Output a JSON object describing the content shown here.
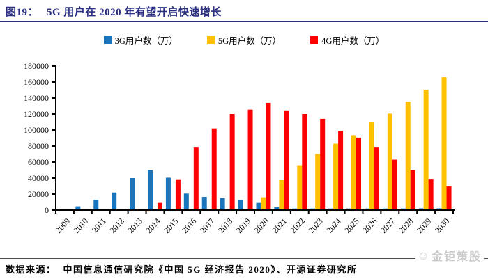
{
  "figure": {
    "label": "图19：",
    "title": "5G 用户在 2020 年有望开启快速增长"
  },
  "colors": {
    "title_navy": "#2a2f80",
    "bar_3g_blue": "#1b75bc",
    "bar_5g_yellow": "#ffc000",
    "bar_4g_red": "#fe0000",
    "axis_black": "#000000",
    "watermark_gray": "#cbcbcb"
  },
  "source": {
    "prefix": "数据来源：",
    "body": "中国信息通信研究院《中国 5G 经济报告 2020》、开源证券研究所"
  },
  "watermark": {
    "icon": "smiley-face-icon",
    "text": "金钜策股"
  },
  "chart_data": {
    "type": "bar",
    "title": "图19：5G 用户在 2020 年有望开启快速增长",
    "categories": [
      "2009",
      "2010",
      "2011",
      "2012",
      "2013",
      "2014",
      "2015",
      "2016",
      "2017",
      "2018",
      "2019",
      "2020",
      "2021",
      "2022",
      "2023",
      "2024",
      "2025",
      "2026",
      "2027",
      "2028",
      "2029",
      "2030"
    ],
    "series": [
      {
        "name": "3G用户数（万）",
        "color": "#1b75bc",
        "values": [
          600,
          4700,
          12800,
          22000,
          40000,
          50000,
          40500,
          20600,
          16500,
          15000,
          12500,
          9000,
          4200,
          2000,
          2000,
          2000,
          2000,
          2000,
          2000,
          2000,
          2200,
          2200
        ]
      },
      {
        "name": "5G用户数（万）",
        "color": "#ffc000",
        "values": [
          0,
          0,
          0,
          0,
          0,
          0,
          0,
          0,
          0,
          0,
          800,
          16000,
          37500,
          56000,
          70000,
          83000,
          93500,
          109500,
          120500,
          135500,
          150500,
          166000
        ]
      },
      {
        "name": "4G用户数（万）",
        "color": "#fe0000",
        "values": [
          0,
          0,
          0,
          0,
          0,
          9000,
          38500,
          79000,
          102000,
          120000,
          125500,
          134000,
          124500,
          120000,
          114000,
          99000,
          90500,
          79000,
          63000,
          50000,
          39000,
          29500
        ]
      }
    ],
    "xlabel": "",
    "ylabel": "",
    "ylim": [
      0,
      180000
    ],
    "ytick_step": 20000,
    "grid": false,
    "legend_position": "top"
  }
}
